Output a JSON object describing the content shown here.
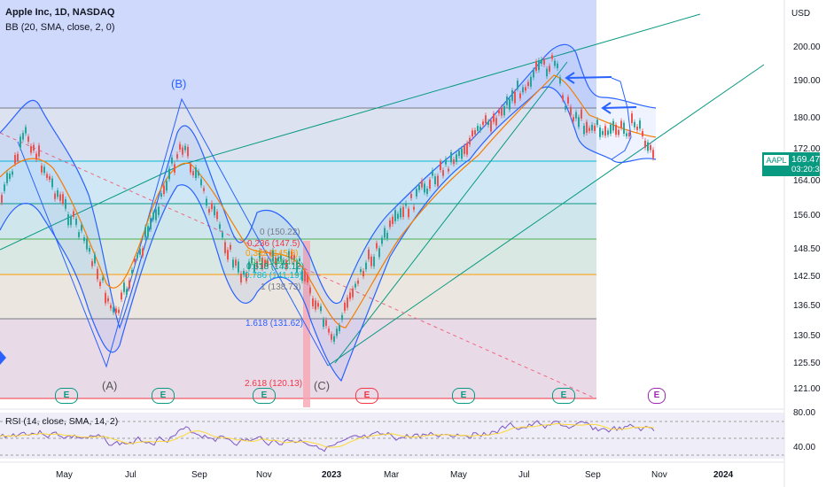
{
  "legend": {
    "title": "Apple Inc, 1D, NASDAQ",
    "bb": "BB (20, SMA, close, 2, 0)"
  },
  "rsi": {
    "label": "RSI (14, close, SMA, 14, 2)"
  },
  "price_axis": {
    "currency": "USD",
    "ticks": [
      "200.00",
      "190.00",
      "180.00",
      "172.00",
      "164.00",
      "156.00",
      "148.50",
      "142.50",
      "136.50",
      "130.50",
      "125.50",
      "121.00"
    ],
    "rsi_ticks": [
      "80.00",
      "40.00"
    ]
  },
  "price_tag": {
    "symbol": "AAPL",
    "last": "169.47",
    "countdown": "03:20:35"
  },
  "time_axis": {
    "ticks": [
      "May",
      "Jul",
      "Sep",
      "Nov",
      "2023",
      "Mar",
      "May",
      "Jul",
      "Sep",
      "Nov",
      "2024"
    ]
  },
  "fib_labels": [
    {
      "text": "0 (150.22)",
      "color": "#787b86"
    },
    {
      "text": "0.236 (147.5)",
      "color": "#f23645"
    },
    {
      "text": "0.382 (145.8)",
      "color": "#ff9800"
    },
    {
      "text": "0.5 (144.47)",
      "color": "#4caf50"
    },
    {
      "text": "0.618 (143.12)",
      "color": "#089981"
    },
    {
      "text": "0.786 (141.19)",
      "color": "#00bcd4"
    },
    {
      "text": "1 (138.73)",
      "color": "#787b86"
    },
    {
      "text": "1.618 (131.62)",
      "color": "#2962ff"
    },
    {
      "text": "2.618 (120.13)",
      "color": "#f23645"
    }
  ],
  "waves": [
    {
      "text": "(B)",
      "color": "#2962ff"
    },
    {
      "text": "(A)",
      "color": "#555555"
    },
    {
      "text": "(C)",
      "color": "#555555"
    }
  ],
  "earnings": [
    {
      "text": "E",
      "color": "#089981"
    },
    {
      "text": "E",
      "color": "#089981"
    },
    {
      "text": "E",
      "color": "#089981"
    },
    {
      "text": "E",
      "color": "#f23645"
    },
    {
      "text": "E",
      "color": "#089981"
    },
    {
      "text": "E",
      "color": "#089981"
    },
    {
      "text": "E",
      "color": "#9c27b0"
    }
  ],
  "colors": {
    "accent": "#2962ff",
    "price_tag": "#089981",
    "bb_line": "#2962ff",
    "bb_basis": "#f57c00",
    "rsi_line": "#7e57c2"
  }
}
